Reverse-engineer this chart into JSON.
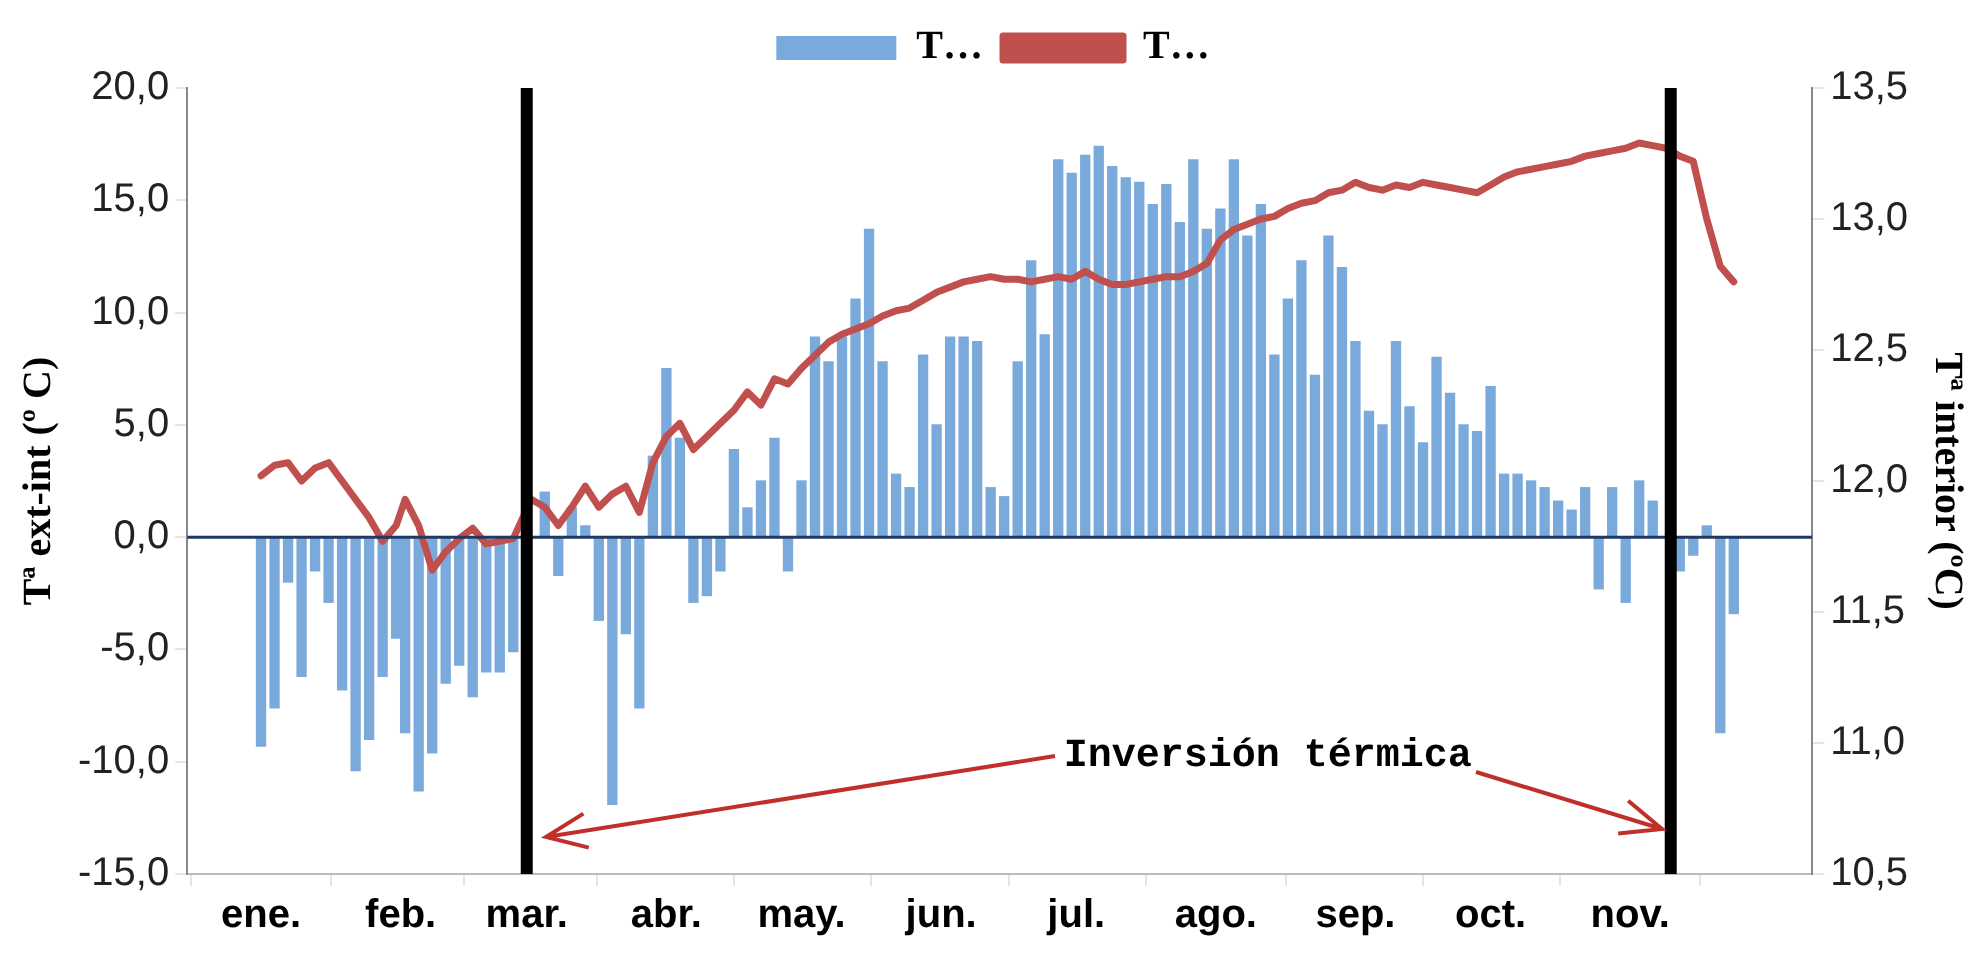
{
  "chart_data": {
    "type": "bar",
    "x": [
      "--01-01",
      "--01-04",
      "--01-07",
      "--01-10",
      "--01-13",
      "--01-16",
      "--01-19",
      "--01-22",
      "--01-25",
      "--01-28",
      "--01-31",
      "--02-02",
      "--02-05",
      "--02-08",
      "--02-11",
      "--02-14",
      "--02-17",
      "--02-20",
      "--02-23",
      "--02-26",
      "--03-02",
      "--03-05",
      "--03-08",
      "--03-11",
      "--03-14",
      "--03-17",
      "--03-20",
      "--03-23",
      "--03-26",
      "--03-29",
      "--04-01",
      "--04-04",
      "--04-07",
      "--04-10",
      "--04-13",
      "--04-16",
      "--04-19",
      "--04-22",
      "--04-25",
      "--04-28",
      "--05-01",
      "--05-04",
      "--05-07",
      "--05-10",
      "--05-13",
      "--05-16",
      "--05-19",
      "--05-22",
      "--05-25",
      "--05-28",
      "--05-31",
      "--06-03",
      "--06-06",
      "--06-09",
      "--06-12",
      "--06-15",
      "--06-18",
      "--06-21",
      "--06-24",
      "--06-27",
      "--06-30",
      "--07-03",
      "--07-06",
      "--07-09",
      "--07-12",
      "--07-15",
      "--07-18",
      "--07-21",
      "--07-24",
      "--07-27",
      "--07-30",
      "--08-02",
      "--08-05",
      "--08-08",
      "--08-11",
      "--08-14",
      "--08-17",
      "--08-20",
      "--08-23",
      "--08-26",
      "--08-29",
      "--09-01",
      "--09-04",
      "--09-07",
      "--09-10",
      "--09-13",
      "--09-16",
      "--09-19",
      "--09-22",
      "--09-25",
      "--09-28",
      "--10-01",
      "--10-04",
      "--10-07",
      "--10-10",
      "--10-13",
      "--10-16",
      "--10-19",
      "--10-22",
      "--10-25",
      "--10-28",
      "--10-31",
      "--11-03",
      "--11-06",
      "--11-09",
      "--11-12",
      "--11-15",
      "--11-18",
      "--11-21",
      "--11-24"
    ],
    "series": [
      {
        "name": "T…",
        "color": "#7aaadc",
        "values": [
          -9.3,
          -7.6,
          -2,
          -6.2,
          -1.5,
          -2.9,
          -6.8,
          -10.4,
          -9,
          -6.2,
          -4.5,
          -8.7,
          -11.3,
          -9.6,
          -6.5,
          -5.7,
          -7.1,
          -6,
          -6,
          -5.1,
          null,
          2,
          -1.7,
          1.3,
          0.5,
          -3.7,
          -11.9,
          -4.3,
          -7.6,
          3.6,
          7.5,
          4.4,
          -2.9,
          -2.6,
          -1.5,
          3.9,
          1.3,
          2.5,
          4.4,
          -1.5,
          2.5,
          8.9,
          7.8,
          8.9,
          10.6,
          13.7,
          7.8,
          2.8,
          2.2,
          8.1,
          5,
          8.9,
          8.9,
          8.7,
          2.2,
          1.8,
          7.8,
          12.3,
          9,
          16.8,
          16.2,
          17,
          17.4,
          16.5,
          16,
          15.8,
          14.8,
          15.7,
          14,
          16.8,
          13.7,
          14.6,
          16.8,
          13.4,
          14.8,
          8.1,
          10.6,
          12.3,
          7.2,
          13.4,
          12,
          8.7,
          5.6,
          5,
          8.7,
          5.8,
          4.2,
          8,
          6.4,
          5,
          4.7,
          6.7,
          2.8,
          2.8,
          2.5,
          2.2,
          1.6,
          1.2,
          2.2,
          -2.3,
          2.2,
          -2.9,
          2.5,
          1.6,
          null,
          -1.5,
          -0.8,
          0.5,
          -8.7,
          -3.4
        ]
      },
      {
        "name": "T…",
        "type": "line",
        "color": "#c0504d",
        "axis": "y2",
        "values": [
          12.02,
          12.06,
          12.07,
          12.0,
          12.05,
          12.07,
          12.0,
          11.93,
          11.86,
          11.77,
          11.83,
          11.93,
          11.83,
          11.66,
          11.73,
          11.78,
          11.82,
          11.76,
          11.77,
          11.78,
          11.93,
          11.9,
          11.83,
          11.9,
          11.98,
          11.9,
          11.95,
          11.98,
          11.88,
          12.07,
          12.17,
          12.22,
          12.12,
          12.17,
          12.22,
          12.27,
          12.34,
          12.29,
          12.39,
          12.37,
          12.43,
          12.48,
          12.53,
          12.56,
          12.58,
          12.6,
          12.63,
          12.65,
          12.66,
          12.69,
          12.72,
          12.74,
          12.76,
          12.77,
          12.78,
          12.77,
          12.77,
          12.76,
          12.77,
          12.78,
          12.77,
          12.8,
          12.77,
          12.75,
          12.75,
          12.76,
          12.77,
          12.78,
          12.78,
          12.8,
          12.83,
          12.92,
          12.96,
          12.98,
          13.0,
          13.01,
          13.04,
          13.06,
          13.07,
          13.1,
          13.11,
          13.14,
          13.12,
          13.11,
          13.13,
          13.12,
          13.14,
          13.13,
          13.12,
          13.11,
          13.1,
          13.13,
          13.16,
          13.18,
          13.19,
          13.2,
          13.21,
          13.22,
          13.24,
          13.25,
          13.26,
          13.27,
          13.29,
          13.28,
          13.27,
          13.24,
          13.22,
          13.0,
          12.82,
          12.76
        ]
      }
    ],
    "ylabel": "Tª ext-int (º C)",
    "y2label": "Tª interior (ºC)",
    "xlim": [
      "--01-01",
      "--11-25"
    ],
    "xticks": [
      {
        "value": "--01-01",
        "label": "ene."
      },
      {
        "value": "--02-01",
        "label": "feb."
      },
      {
        "value": "--03-01",
        "label": "mar."
      },
      {
        "value": "--04-01",
        "label": "abr."
      },
      {
        "value": "--05-01",
        "label": "may."
      },
      {
        "value": "--06-01",
        "label": "jun."
      },
      {
        "value": "--07-01",
        "label": "jul."
      },
      {
        "value": "--08-01",
        "label": "ago."
      },
      {
        "value": "--09-01",
        "label": "sep."
      },
      {
        "value": "--10-01",
        "label": "oct."
      },
      {
        "value": "--11-01",
        "label": "nov."
      }
    ],
    "ylim": [
      -15,
      20
    ],
    "yticks": [
      {
        "value": -15,
        "label": "-15,0"
      },
      {
        "value": -10,
        "label": "-10,0"
      },
      {
        "value": -5,
        "label": "-5,0"
      },
      {
        "value": 0,
        "label": "0,0"
      },
      {
        "value": 5,
        "label": "5,0"
      },
      {
        "value": 10,
        "label": "10,0"
      },
      {
        "value": 15,
        "label": "15,0"
      },
      {
        "value": 20,
        "label": "20,0"
      }
    ],
    "y2lim": [
      10.5,
      13.5
    ],
    "y2ticks": [
      {
        "value": 10.5,
        "label": "10,5"
      },
      {
        "value": 11,
        "label": "11,0"
      },
      {
        "value": 11.5,
        "label": "11,5"
      },
      {
        "value": 12,
        "label": "12,0"
      },
      {
        "value": 12.5,
        "label": "12,5"
      },
      {
        "value": 13,
        "label": "13,0"
      },
      {
        "value": 13.5,
        "label": "13,5"
      }
    ],
    "ref_lines": [
      {
        "axis": "y",
        "value": 0,
        "color": "#1f3864"
      },
      {
        "axis": "x",
        "value": "--03-01",
        "color": "#000000"
      },
      {
        "axis": "x",
        "value": "--11-10",
        "color": "#000000"
      }
    ],
    "annotations": [
      {
        "text": "Inversión térmica",
        "x": "--11-08",
        "y": -13
      }
    ],
    "legend": "top",
    "marker": "none",
    "line_style": "solid",
    "grid": false
  }
}
